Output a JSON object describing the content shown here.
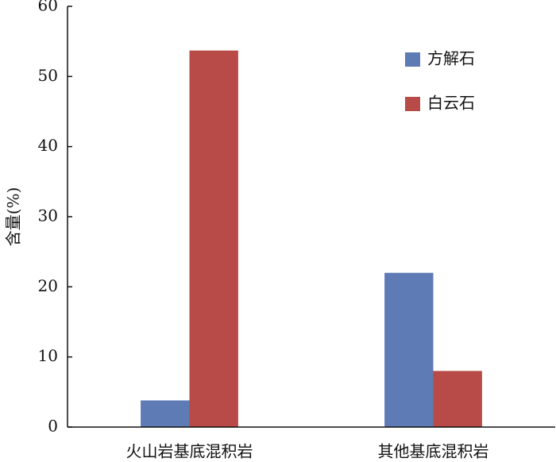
{
  "chart_data": {
    "type": "bar",
    "y_label": "含量(%)",
    "categories": [
      "火山岩基底混积岩",
      "其他基底混积岩"
    ],
    "series": [
      {
        "name": "方解石",
        "color": "#5f7bb5",
        "values": [
          3.8,
          22
        ]
      },
      {
        "name": "白云石",
        "color": "#b84a48",
        "values": [
          53.7,
          8
        ]
      }
    ],
    "ylim": [
      0,
      60
    ],
    "yticks": [
      0,
      10,
      20,
      30,
      40,
      50,
      60
    ],
    "grid": false,
    "legend": "upper right"
  }
}
